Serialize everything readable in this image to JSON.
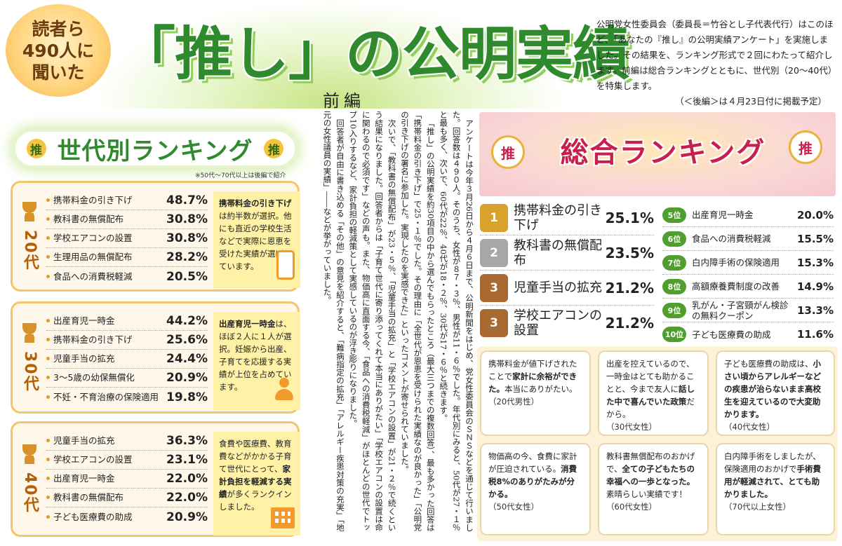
{
  "header": {
    "badge_lines": [
      "読者ら",
      "490人に",
      "聞いた"
    ],
    "title": "「推し」の公明実績",
    "part": "前編"
  },
  "intro": {
    "text": "公明党女性委員会（委員長＝竹谷とし子代表代行）はこのほど、「あなたの『推し』の公明実績アンケート」を実施しました。その結果を、ランキング形式で２回にわたって紹介します。前編は総合ランキングとともに、世代別（20〜40代）を特集します。",
    "note": "（＜後編＞は４月23日付に掲載予定）"
  },
  "generation": {
    "badge": "推",
    "title": "世代別ランキング",
    "note": "※50代〜70代以上は後編で紹介",
    "groups": [
      {
        "age": "20代",
        "items": [
          {
            "name": "携帯料金の引き下げ",
            "pct": "48.7%"
          },
          {
            "name": "教科書の無償配布",
            "pct": "30.8%"
          },
          {
            "name": "学校エアコンの設置",
            "pct": "30.8%"
          },
          {
            "name": "生理用品の無償配布",
            "pct": "28.2%"
          },
          {
            "name": "食品への消費税軽減",
            "pct": "20.5%"
          }
        ],
        "note_bold": "携帯料金の引き下げ",
        "note_rest": "は約半数が選択。他にも直近の学校生活などで実際に恩恵を受けた実績が選ばれています。"
      },
      {
        "age": "30代",
        "items": [
          {
            "name": "出産育児一時金",
            "pct": "44.2%"
          },
          {
            "name": "携帯料金の引き下げ",
            "pct": "25.6%"
          },
          {
            "name": "児童手当の拡充",
            "pct": "24.4%"
          },
          {
            "name": "3〜5歳の幼保無償化",
            "pct": "20.9%"
          },
          {
            "name": "不妊・不育治療の保険適用",
            "pct": "19.8%"
          }
        ],
        "note_bold": "出産育児一時金",
        "note_rest": "は、ほぼ２人に１人が選択。妊娠から出産、子育てを応援する実績が上位を占めています。"
      },
      {
        "age": "40代",
        "items": [
          {
            "name": "児童手当の拡充",
            "pct": "36.3%"
          },
          {
            "name": "学校エアコンの設置",
            "pct": "23.1%"
          },
          {
            "name": "出産育児一時金",
            "pct": "22.0%"
          },
          {
            "name": "教科書の無償配布",
            "pct": "22.0%"
          },
          {
            "name": "子ども医療費の助成",
            "pct": "20.9%"
          }
        ],
        "note_pre": "食費や医療費、教育費などがかかる子育て世代にとって、",
        "note_bold": "家計負担を軽減する実績",
        "note_rest": "が多くランクインしました。"
      }
    ]
  },
  "article": {
    "paragraphs": [
      "アンケートは今年３月26日から４月６日まで、公明新聞をはじめ、党女性委員会のＳＮＳなどを通じて行いました。回答数は４９０人。そのうち、女性が８７・３％、男性が11・６％でした。年代別にみると、50代が27・１％と最も多く、次いで、60代が22％、40代が18・２％、30代が17・６％と続きます。",
      "「推し」の公明実績を約30項目の中から選んでもらったところ（最大三つまでの複数回答）、最も多かった回答は「携帯料金の引き下げ」で25・１％でした。その理由に「全世代が恩恵を受けられた実績なのが良かった」「公明党の引き下げの署名に参加した。実現したのを実感できた」といったコメントが寄せられていました。",
      "次いで、「教科書の無償配布」が23・５％、「児童手当の拡充」と「学校エアコンの設置」が21・２％で続くという結果になりました。回答者からは「子育て世代に寄り添ってくれて本当にありがたい」「学校エアコンの設置は命に関わるので必須です」などの声も。また、物価高に直面する今、「食品への消費税軽減」がほとんどの世代でトップ10入りするなど、家計負担の軽減策として実感しているのが浮き彫りになりました。",
      "回答者が自由に書き込める「その他」の意見を紹介すると、「難病指定の拡充」「アレルギー疾患対策の充実」「地元の女性議員の実績」――などが挙がっていました。"
    ]
  },
  "overall": {
    "title": "総合ランキング",
    "fan_label": "推",
    "top": [
      {
        "rank": "1",
        "name": "携帯料金の引き下げ",
        "pct": "25.1%"
      },
      {
        "rank": "2",
        "name": "教科書の無償配布",
        "pct": "23.5%"
      },
      {
        "rank": "3",
        "name": "児童手当の拡充",
        "pct": "21.2%"
      },
      {
        "rank": "3",
        "name": "学校エアコンの設置",
        "pct": "21.2%"
      }
    ],
    "rest": [
      {
        "rank": "5位",
        "name": "出産育児一時金",
        "pct": "20.0%"
      },
      {
        "rank": "6位",
        "name": "食品への消費税軽減",
        "pct": "15.5%"
      },
      {
        "rank": "7位",
        "name": "白内障手術の保険適用",
        "pct": "15.3%"
      },
      {
        "rank": "8位",
        "name": "高額療養費制度の改善",
        "pct": "14.9%"
      },
      {
        "rank": "9位",
        "name": "乳がん・子宮頸がん検診の無料クーポン",
        "pct": "13.3%"
      },
      {
        "rank": "10位",
        "name": "子ども医療費の助成",
        "pct": "11.6%"
      }
    ]
  },
  "comments": [
    {
      "pre": "携帯料金が値下げされたことで",
      "bold": "家計に余裕ができた。",
      "post": "本当にありがたい。",
      "who": "（20代男性）"
    },
    {
      "pre": "出産を控えているので、一時金はとても助かることと、今まで友人に",
      "bold": "話した中で喜んでいた政策",
      "post": "だから。",
      "who": "（30代女性）"
    },
    {
      "pre": "子ども医療費の助成は、",
      "bold": "小さい頃からアレルギーなどの疾患が治らないまま高校生を迎えているので大変助かります。",
      "post": "",
      "who": "（40代女性）"
    },
    {
      "pre": "物価高の今、食費に家計が圧迫されている。",
      "bold": "消費税8%のありがたみが分かる。",
      "post": "",
      "who": "（50代女性）"
    },
    {
      "pre": "教科書無償配布のおかげで、",
      "bold": "全ての子どもたちの幸福への一歩となった。",
      "post": "素晴らしい実績です！",
      "who": "（60代女性）"
    },
    {
      "pre": "白内障手術をしましたが、保険適用のおかげで",
      "bold": "手術費用が軽減されて、とても助かりました。",
      "post": "",
      "who": "（70代以上女性）"
    }
  ]
}
